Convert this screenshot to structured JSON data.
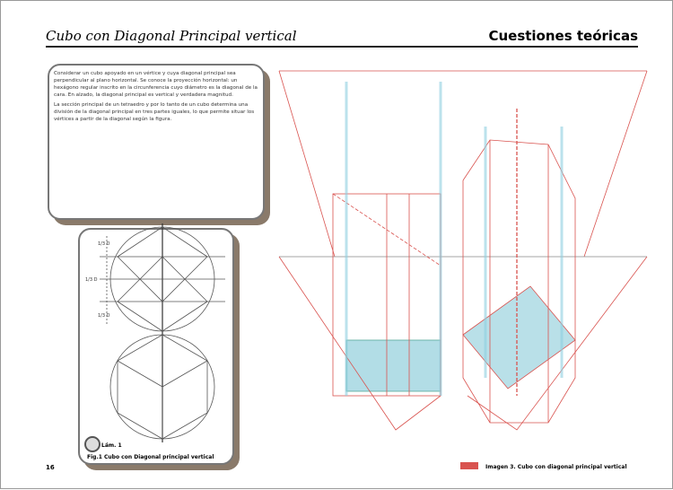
{
  "header": {
    "title": "Cubo con Diagonal Principal vertical",
    "section": "Cuestiones teóricas"
  },
  "text_box": {
    "paragraphs": [
      "Considerar un cubo apoyado en un vértice y cuya diagonal principal sea perpendicular al plano horizontal. Se conoce la proyección horizontal: un hexágono regular inscrito en la circunferencia cuyo diámetro es la diagonal de la cara. En alzado, la diagonal principal es vertical y verdadera magnitud.",
      "La sección principal de un tetraedro y por lo tanto de un cubo determina una división de la diagonal principal en tres partes iguales, lo que permite situar los vértices a partir de la diagonal según la figura."
    ]
  },
  "figure": {
    "labels": [
      "1/3 D",
      "1/3 D",
      "1/3 D"
    ],
    "badge": "Lám. 1",
    "caption": "Fig.1 Cubo con Diagonal principal vertical"
  },
  "drawing": {
    "caption": "Imagen 3. Cubo con diagonal principal vertical"
  },
  "page_number": "16"
}
